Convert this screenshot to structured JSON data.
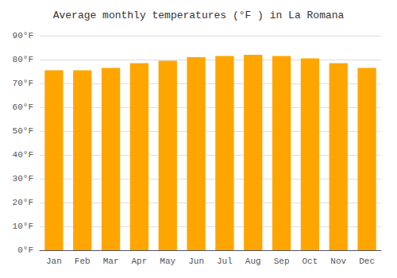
{
  "chart_data": {
    "type": "bar",
    "title": "Average monthly temperatures (°F ) in La Romana",
    "categories": [
      "Jan",
      "Feb",
      "Mar",
      "Apr",
      "May",
      "Jun",
      "Jul",
      "Aug",
      "Sep",
      "Oct",
      "Nov",
      "Dec"
    ],
    "values": [
      75.5,
      75.5,
      76.5,
      78.5,
      79.5,
      81.0,
      81.5,
      82.0,
      81.5,
      80.5,
      78.5,
      76.5
    ],
    "color": "#FFA500",
    "ylim": [
      0,
      90
    ],
    "yticks": [
      {
        "value": 0,
        "label": "0°F"
      },
      {
        "value": 10,
        "label": "10°F"
      },
      {
        "value": 20,
        "label": "20°F"
      },
      {
        "value": 30,
        "label": "30°F"
      },
      {
        "value": 40,
        "label": "40°F"
      },
      {
        "value": 50,
        "label": "50°F"
      },
      {
        "value": 60,
        "label": "60°F"
      },
      {
        "value": 70,
        "label": "70°F"
      },
      {
        "value": 80,
        "label": "80°F"
      },
      {
        "value": 90,
        "label": "90°F"
      }
    ],
    "grid": true
  }
}
